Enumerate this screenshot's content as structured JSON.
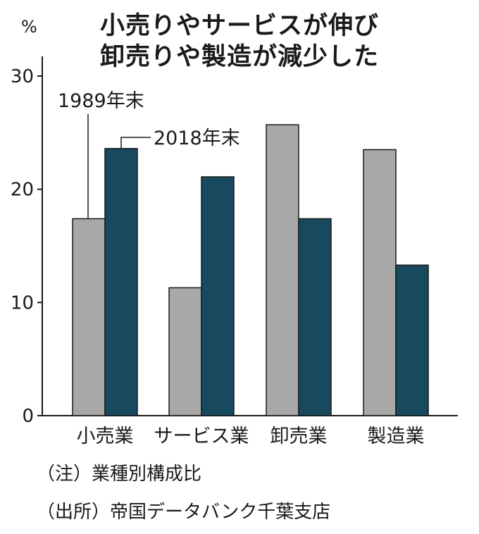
{
  "title_lines": [
    "小売りやサービスが伸び",
    "卸売りや製造が減少した"
  ],
  "notes": [
    "（注）業種別構成比",
    "（出所）帝国データバンク千葉支店"
  ],
  "colors": {
    "series_1989": "#a8a8a8",
    "series_2018": "#17495f",
    "stroke": "#1a1a1a"
  },
  "chart_data": {
    "type": "bar",
    "title": "小売りやサービスが伸び 卸売りや製造が減少した",
    "ylabel": "%",
    "xlabel": "",
    "ylim": [
      0,
      30
    ],
    "yticks": [
      0,
      10,
      20,
      30
    ],
    "grid": false,
    "categories": [
      "小売業",
      "サービス業",
      "卸売業",
      "製造業"
    ],
    "series": [
      {
        "name": "1989年末",
        "values": [
          17.4,
          11.3,
          25.7,
          23.5
        ]
      },
      {
        "name": "2018年末",
        "values": [
          23.6,
          21.1,
          17.4,
          13.3
        ]
      }
    ],
    "annotations": [
      "1989年末",
      "2018年末"
    ]
  }
}
